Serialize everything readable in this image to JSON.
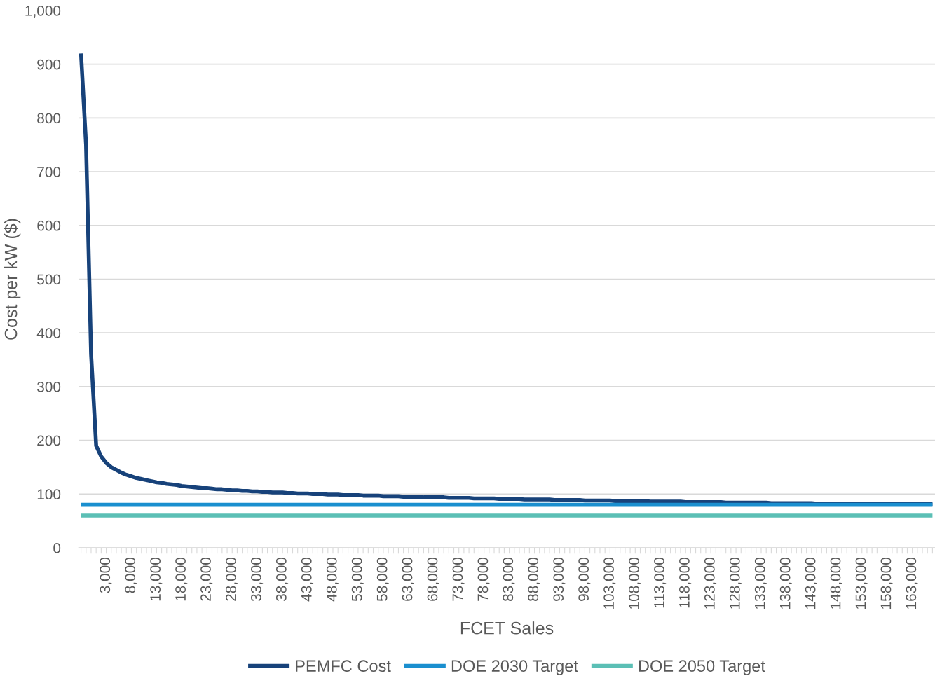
{
  "chart_data": {
    "type": "line",
    "xlabel": "FCET Sales",
    "ylabel": "Cost per kW ($)",
    "categories": [
      null,
      null,
      null,
      null,
      null,
      "3,000",
      null,
      null,
      null,
      null,
      "8,000",
      null,
      null,
      null,
      null,
      "13,000",
      null,
      null,
      null,
      null,
      "18,000",
      null,
      null,
      null,
      null,
      "23,000",
      null,
      null,
      null,
      null,
      "28,000",
      null,
      null,
      null,
      null,
      "33,000",
      null,
      null,
      null,
      null,
      "38,000",
      null,
      null,
      null,
      null,
      "43,000",
      null,
      null,
      null,
      null,
      "48,000",
      null,
      null,
      null,
      null,
      "53,000",
      null,
      null,
      null,
      null,
      "58,000",
      null,
      null,
      null,
      null,
      "63,000",
      null,
      null,
      null,
      null,
      "68,000",
      null,
      null,
      null,
      null,
      "73,000",
      null,
      null,
      null,
      null,
      "78,000",
      null,
      null,
      null,
      null,
      "83,000",
      null,
      null,
      null,
      null,
      "88,000",
      null,
      null,
      null,
      null,
      "93,000",
      null,
      null,
      null,
      null,
      "98,000",
      null,
      null,
      null,
      null,
      "103,000",
      null,
      null,
      null,
      null,
      "108,000",
      null,
      null,
      null,
      null,
      "113,000",
      null,
      null,
      null,
      null,
      "118,000",
      null,
      null,
      null,
      null,
      "123,000",
      null,
      null,
      null,
      null,
      "128,000",
      null,
      null,
      null,
      null,
      "133,000",
      null,
      null,
      null,
      null,
      "138,000",
      null,
      null,
      null,
      null,
      "143,000",
      null,
      null,
      null,
      null,
      "148,000",
      null,
      null,
      null,
      null,
      "153,000",
      null,
      null,
      null,
      null,
      "158,000",
      null,
      null,
      null,
      null,
      "163,000",
      null,
      null,
      null,
      null
    ],
    "series": [
      {
        "name": "PEMFC Cost",
        "color": "#17427a",
        "values": [
          920,
          750,
          360,
          190,
          170,
          158,
          150,
          145,
          140,
          136,
          133,
          130,
          128,
          126,
          124,
          122,
          121,
          119,
          118,
          117,
          115,
          114,
          113,
          112,
          111,
          111,
          110,
          109,
          109,
          108,
          107,
          107,
          106,
          106,
          105,
          105,
          104,
          104,
          103,
          103,
          103,
          102,
          102,
          101,
          101,
          101,
          100,
          100,
          100,
          99,
          99,
          99,
          98,
          98,
          98,
          98,
          97,
          97,
          97,
          97,
          96,
          96,
          96,
          96,
          95,
          95,
          95,
          95,
          94,
          94,
          94,
          94,
          94,
          93,
          93,
          93,
          93,
          93,
          92,
          92,
          92,
          92,
          92,
          91,
          91,
          91,
          91,
          91,
          90,
          90,
          90,
          90,
          90,
          90,
          89,
          89,
          89,
          89,
          89,
          89,
          88,
          88,
          88,
          88,
          88,
          88,
          87,
          87,
          87,
          87,
          87,
          87,
          87,
          86,
          86,
          86,
          86,
          86,
          86,
          86,
          85,
          85,
          85,
          85,
          85,
          85,
          85,
          85,
          84,
          84,
          84,
          84,
          84,
          84,
          84,
          84,
          84,
          83,
          83,
          83,
          83,
          83,
          83,
          83,
          83,
          83,
          82,
          82,
          82,
          82,
          82,
          82,
          82,
          82,
          82,
          82,
          82,
          81,
          81,
          81,
          81,
          81,
          81,
          81,
          81,
          81,
          81,
          81,
          81,
          81
        ]
      },
      {
        "name": "DOE 2030 Target",
        "color": "#1a8fcf",
        "values": [
          80,
          80,
          80,
          80,
          80,
          80,
          80,
          80,
          80,
          80,
          80,
          80,
          80,
          80,
          80,
          80,
          80,
          80,
          80,
          80,
          80,
          80,
          80,
          80,
          80,
          80,
          80,
          80,
          80,
          80,
          80,
          80,
          80,
          80,
          80,
          80,
          80,
          80,
          80,
          80,
          80,
          80,
          80,
          80,
          80,
          80,
          80,
          80,
          80,
          80,
          80,
          80,
          80,
          80,
          80,
          80,
          80,
          80,
          80,
          80,
          80,
          80,
          80,
          80,
          80,
          80,
          80,
          80,
          80,
          80,
          80,
          80,
          80,
          80,
          80,
          80,
          80,
          80,
          80,
          80,
          80,
          80,
          80,
          80,
          80,
          80,
          80,
          80,
          80,
          80,
          80,
          80,
          80,
          80,
          80,
          80,
          80,
          80,
          80,
          80,
          80,
          80,
          80,
          80,
          80,
          80,
          80,
          80,
          80,
          80,
          80,
          80,
          80,
          80,
          80,
          80,
          80,
          80,
          80,
          80,
          80,
          80,
          80,
          80,
          80,
          80,
          80,
          80,
          80,
          80,
          80,
          80,
          80,
          80,
          80,
          80,
          80,
          80,
          80,
          80,
          80,
          80,
          80,
          80,
          80,
          80,
          80,
          80,
          80,
          80,
          80,
          80,
          80,
          80,
          80,
          80,
          80,
          80,
          80,
          80,
          80,
          80,
          80,
          80,
          80,
          80,
          80,
          80,
          80,
          80
        ]
      },
      {
        "name": "DOE 2050 Target",
        "color": "#5bbfb5",
        "values": [
          60,
          60,
          60,
          60,
          60,
          60,
          60,
          60,
          60,
          60,
          60,
          60,
          60,
          60,
          60,
          60,
          60,
          60,
          60,
          60,
          60,
          60,
          60,
          60,
          60,
          60,
          60,
          60,
          60,
          60,
          60,
          60,
          60,
          60,
          60,
          60,
          60,
          60,
          60,
          60,
          60,
          60,
          60,
          60,
          60,
          60,
          60,
          60,
          60,
          60,
          60,
          60,
          60,
          60,
          60,
          60,
          60,
          60,
          60,
          60,
          60,
          60,
          60,
          60,
          60,
          60,
          60,
          60,
          60,
          60,
          60,
          60,
          60,
          60,
          60,
          60,
          60,
          60,
          60,
          60,
          60,
          60,
          60,
          60,
          60,
          60,
          60,
          60,
          60,
          60,
          60,
          60,
          60,
          60,
          60,
          60,
          60,
          60,
          60,
          60,
          60,
          60,
          60,
          60,
          60,
          60,
          60,
          60,
          60,
          60,
          60,
          60,
          60,
          60,
          60,
          60,
          60,
          60,
          60,
          60,
          60,
          60,
          60,
          60,
          60,
          60,
          60,
          60,
          60,
          60,
          60,
          60,
          60,
          60,
          60,
          60,
          60,
          60,
          60,
          60,
          60,
          60,
          60,
          60,
          60,
          60,
          60,
          60,
          60,
          60,
          60,
          60,
          60,
          60,
          60,
          60,
          60,
          60,
          60,
          60,
          60,
          60,
          60,
          60,
          60,
          60,
          60,
          60,
          60,
          60
        ]
      }
    ],
    "ylim": [
      0,
      1000
    ],
    "yticks": [
      0,
      100,
      200,
      300,
      400,
      500,
      600,
      700,
      800,
      900,
      {
        "value": 1000,
        "label": "1,000"
      }
    ],
    "grid": "y",
    "legend": "bottom",
    "marker": "none",
    "line_style": "solid"
  }
}
